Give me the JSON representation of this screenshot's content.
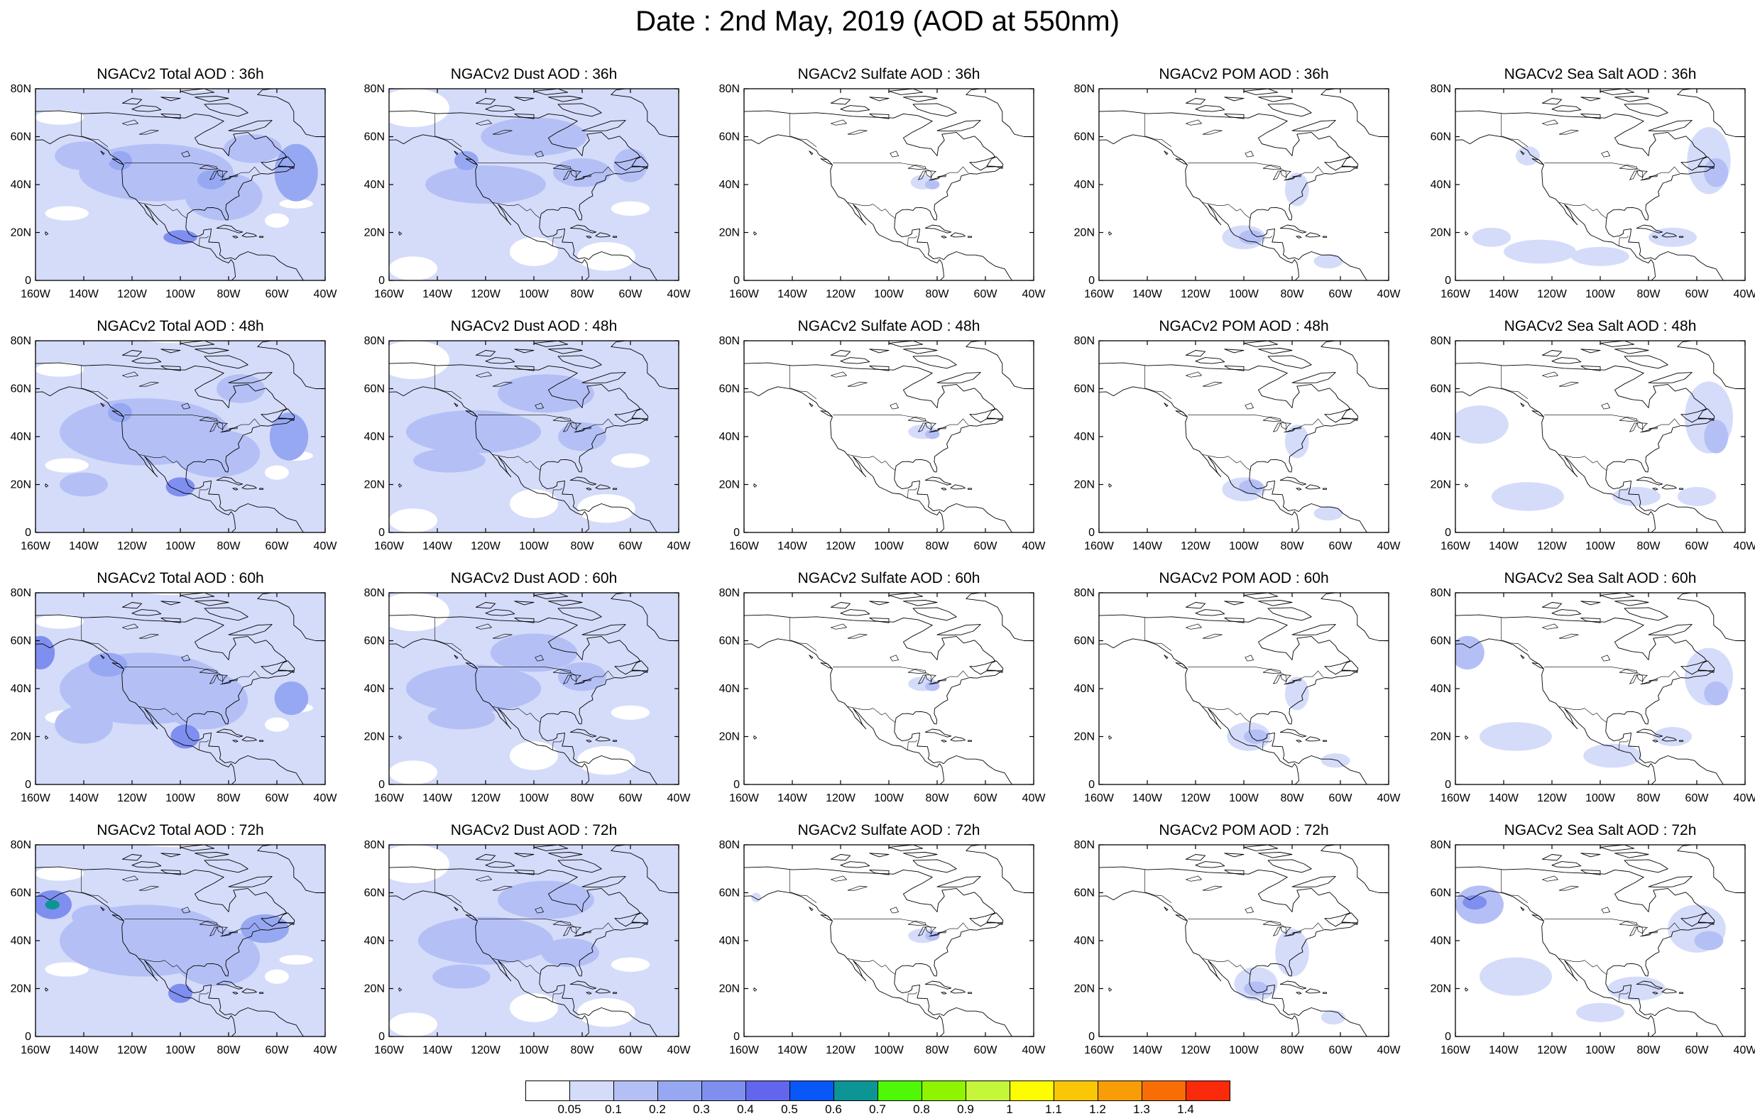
{
  "title": "Date : 2nd May, 2019 (AOD at 550nm)",
  "lon_ticks": [
    "160W",
    "140W",
    "120W",
    "100W",
    "80W",
    "60W",
    "40W"
  ],
  "lat_ticks": [
    "0",
    "20N",
    "40N",
    "60N",
    "80N"
  ],
  "extent": {
    "lon_min": -160,
    "lon_max": -40,
    "lat_min": 0,
    "lat_max": 80
  },
  "panels": [
    [
      {
        "title": "NGACv2 Total AOD : 36h",
        "species": "total"
      },
      {
        "title": "NGACv2 Dust AOD : 36h",
        "species": "dust"
      },
      {
        "title": "NGACv2 Sulfate AOD : 36h",
        "species": "sulfate"
      },
      {
        "title": "NGACv2 POM AOD : 36h",
        "species": "pom"
      },
      {
        "title": "NGACv2 Sea Salt AOD : 36h",
        "species": "seasalt"
      }
    ],
    [
      {
        "title": "NGACv2 Total AOD : 48h",
        "species": "total"
      },
      {
        "title": "NGACv2 Dust AOD : 48h",
        "species": "dust"
      },
      {
        "title": "NGACv2 Sulfate AOD : 48h",
        "species": "sulfate"
      },
      {
        "title": "NGACv2 POM AOD : 48h",
        "species": "pom"
      },
      {
        "title": "NGACv2 Sea Salt AOD : 48h",
        "species": "seasalt"
      }
    ],
    [
      {
        "title": "NGACv2 Total AOD : 60h",
        "species": "total"
      },
      {
        "title": "NGACv2 Dust AOD : 60h",
        "species": "dust"
      },
      {
        "title": "NGACv2 Sulfate AOD : 60h",
        "species": "sulfate"
      },
      {
        "title": "NGACv2 POM AOD : 60h",
        "species": "pom"
      },
      {
        "title": "NGACv2 Sea Salt AOD : 60h",
        "species": "seasalt"
      }
    ],
    [
      {
        "title": "NGACv2 Total AOD : 72h",
        "species": "total"
      },
      {
        "title": "NGACv2 Dust AOD : 72h",
        "species": "dust"
      },
      {
        "title": "NGACv2 Sulfate AOD : 72h",
        "species": "sulfate"
      },
      {
        "title": "NGACv2 POM AOD : 72h",
        "species": "pom"
      },
      {
        "title": "NGACv2 Sea Salt  AOD : 72h",
        "species": "seasalt"
      }
    ]
  ],
  "colorbar": {
    "labels": [
      "0.05",
      "0.1",
      "0.2",
      "0.3",
      "0.4",
      "0.5",
      "0.6",
      "0.7",
      "0.8",
      "0.9",
      "1",
      "1.1",
      "1.2",
      "1.3",
      "1.4"
    ],
    "colors": [
      "#ffffff",
      "#d5dcfa",
      "#b4c0f5",
      "#97a8f3",
      "#7f8ff0",
      "#6166ec",
      "#0857f7",
      "#0d9595",
      "#4ef806",
      "#8ff400",
      "#c4f63a",
      "#fdfc03",
      "#f9c706",
      "#f99d07",
      "#f86e05",
      "#f92b0a"
    ]
  },
  "aod_levels": {
    "light": "#d5dcfa",
    "medium": "#b4c0f5",
    "strong": "#97a8f3",
    "intense": "#7f8ff0",
    "teal": "#0d9595"
  }
}
